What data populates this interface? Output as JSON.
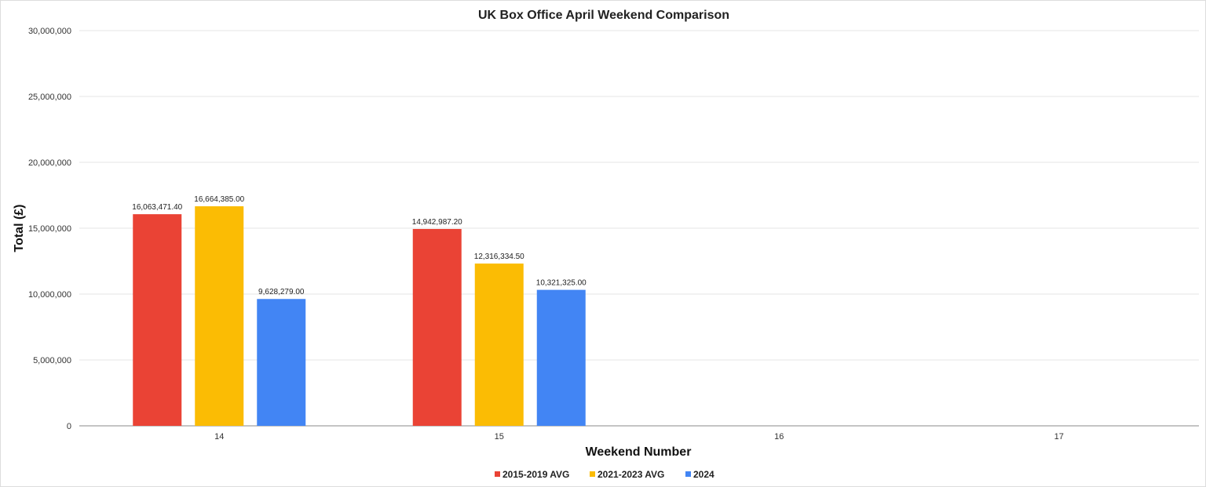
{
  "chart_data": {
    "type": "bar",
    "title": "UK Box Office April Weekend Comparison",
    "xlabel": "Weekend Number",
    "ylabel": "Total (£)",
    "categories": [
      "14",
      "15",
      "16",
      "17"
    ],
    "series": [
      {
        "name": "2015-2019 AVG",
        "color": "#EA4335",
        "values": [
          16063471.4,
          14942987.2,
          null,
          null
        ],
        "labels": [
          "16,063,471.40",
          "14,942,987.20",
          null,
          null
        ]
      },
      {
        "name": "2021-2023 AVG",
        "color": "#FBBC04",
        "values": [
          16664385.0,
          12316334.5,
          null,
          null
        ],
        "labels": [
          "16,664,385.00",
          "12,316,334.50",
          null,
          null
        ]
      },
      {
        "name": "2024",
        "color": "#4285F4",
        "values": [
          9628279.0,
          10321325.0,
          null,
          null
        ],
        "labels": [
          "9,628,279.00",
          "10,321,325.00",
          null,
          null
        ]
      }
    ],
    "ylim": [
      0,
      30000000
    ],
    "yticks": [
      0,
      5000000,
      10000000,
      15000000,
      20000000,
      25000000,
      30000000
    ],
    "ytick_labels": [
      "0",
      "5,000,000",
      "10,000,000",
      "15,000,000",
      "20,000,000",
      "25,000,000",
      "30,000,000"
    ],
    "grid": true,
    "legend_position": "bottom"
  }
}
